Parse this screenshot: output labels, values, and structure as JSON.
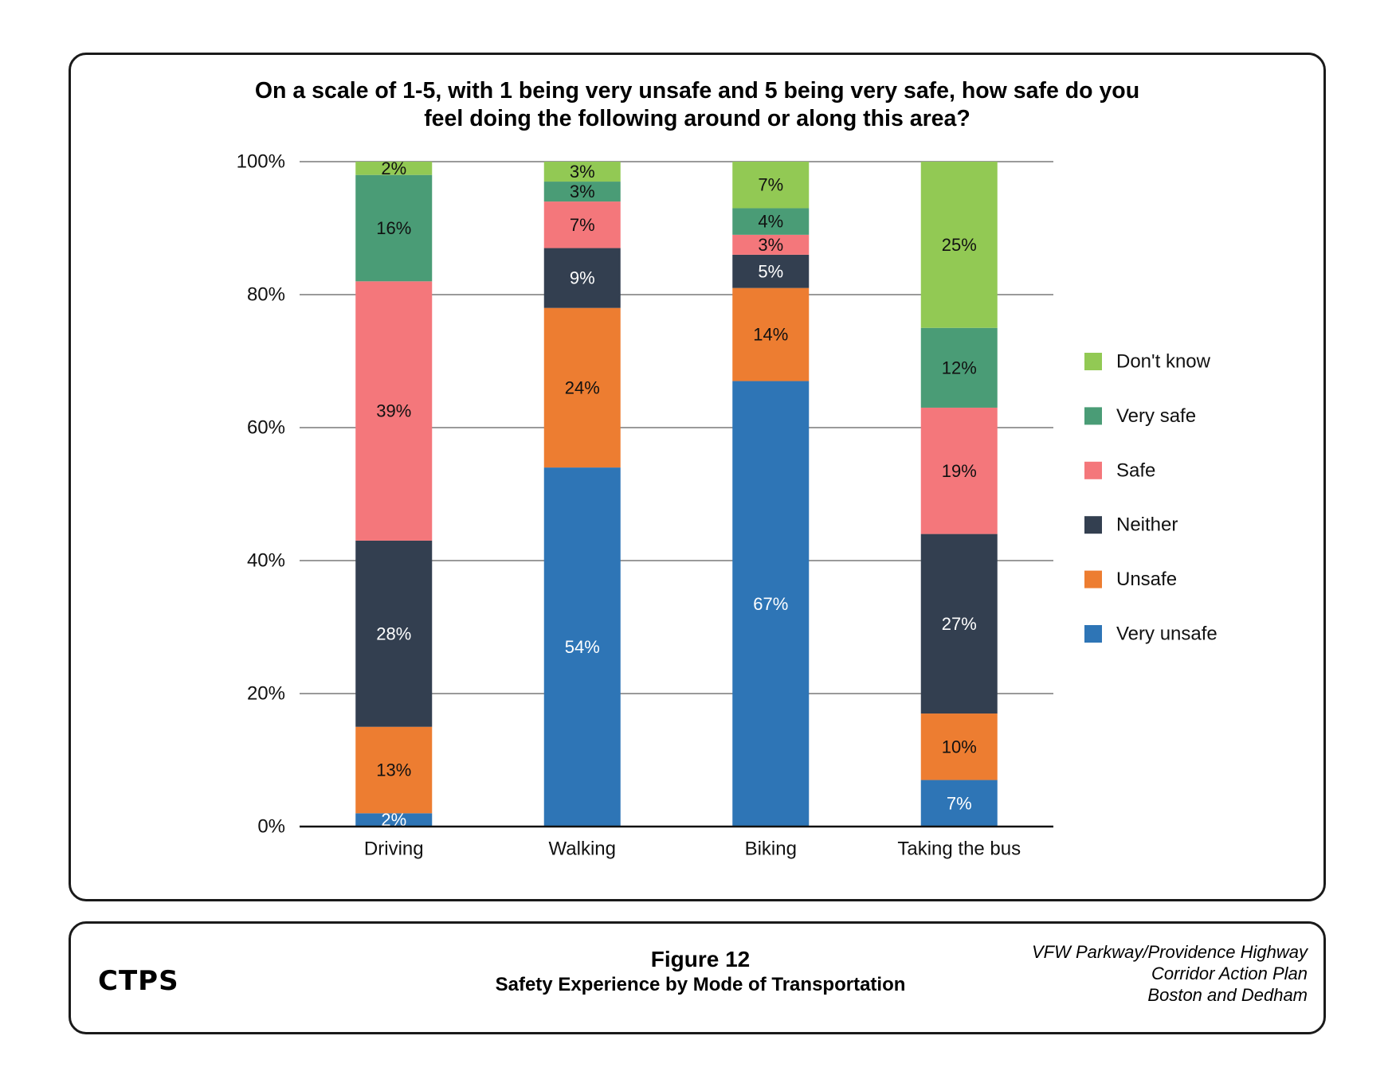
{
  "chart_data": {
    "type": "bar",
    "stacked": true,
    "title_lines": [
      "On a scale of 1-5, with 1 being very unsafe and 5 being very safe, how safe do you",
      "feel doing the following around or along this area?"
    ],
    "categories": [
      "Driving",
      "Walking",
      "Biking",
      "Taking the bus"
    ],
    "series": [
      {
        "name": "Very unsafe",
        "color": "#2E75B6",
        "label_color": "#ffffff",
        "values": [
          2,
          54,
          67,
          7
        ]
      },
      {
        "name": "Unsafe",
        "color": "#ED7D31",
        "label_color": "#111111",
        "values": [
          13,
          24,
          14,
          10
        ]
      },
      {
        "name": "Neither",
        "color": "#333F50",
        "label_color": "#ffffff",
        "values": [
          28,
          9,
          5,
          27
        ]
      },
      {
        "name": "Safe",
        "color": "#F4777B",
        "label_color": "#111111",
        "values": [
          39,
          7,
          3,
          19
        ]
      },
      {
        "name": "Very safe",
        "color": "#4A9C76",
        "label_color": "#111111",
        "values": [
          16,
          3,
          4,
          12
        ]
      },
      {
        "name": "Don't know",
        "color": "#92C954",
        "label_color": "#111111",
        "values": [
          2,
          3,
          7,
          25
        ]
      }
    ],
    "bar_totals": [
      100,
      100,
      100,
      100
    ],
    "yticks": [
      "0%",
      "20%",
      "40%",
      "60%",
      "80%",
      "100%"
    ],
    "ytick_values": [
      0,
      20,
      40,
      60,
      80,
      100
    ],
    "ylim": [
      0,
      100
    ],
    "grid": true,
    "legend_position": "right",
    "legend_order": [
      "Don't know",
      "Very safe",
      "Safe",
      "Neither",
      "Unsafe",
      "Very unsafe"
    ]
  },
  "footer": {
    "logo": "CTPS",
    "figure_number": "Figure 12",
    "figure_caption": "Safety Experience by Mode of Transportation",
    "report_lines": [
      "VFW Parkway/Providence Highway",
      "Corridor Action Plan",
      "Boston and Dedham"
    ]
  }
}
